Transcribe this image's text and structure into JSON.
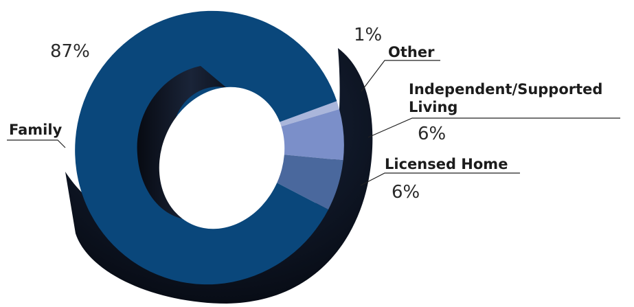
{
  "chart_data": {
    "type": "pie",
    "variant": "3d-donut",
    "title": "",
    "categories": [
      "Family",
      "Other",
      "Independent/Supported Living",
      "Licensed Home"
    ],
    "values": [
      87,
      1,
      6,
      6
    ],
    "value_labels": [
      "87%",
      "1%",
      "6%",
      "6%"
    ],
    "label_lines": {
      "independent": [
        "Independent/Supported",
        "Living"
      ]
    },
    "colors": {
      "family": "#0a477b",
      "other": "#aab6db",
      "independent": "#7b8fc9",
      "licensed": "#4a689d",
      "side": "#111a2a",
      "hole": "#0c111c"
    },
    "legend": "callout-labels"
  }
}
